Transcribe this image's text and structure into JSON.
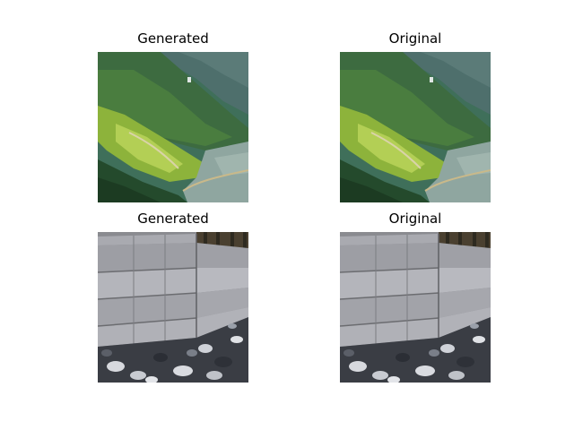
{
  "panels": [
    {
      "title": "Generated",
      "scene": "fjord-valley-mountainside"
    },
    {
      "title": "Original",
      "scene": "fjord-valley-mountainside"
    },
    {
      "title": "Generated",
      "scene": "weathered-wooden-fence-pebbles"
    },
    {
      "title": "Original",
      "scene": "weathered-wooden-fence-pebbles"
    }
  ],
  "colors": {
    "background": "#ffffff",
    "text": "#000000",
    "forest_dark": "#2f5a3a",
    "forest_mid": "#3f7345",
    "meadow": "#9cbf3a",
    "water": "#8fa6a0",
    "mountain_far": "#4e6f6c",
    "wood_light": "#b7b8bd",
    "wood_dark": "#6b6c70",
    "pebble_dark": "#2e3138",
    "pebble_light": "#d7d9de"
  }
}
